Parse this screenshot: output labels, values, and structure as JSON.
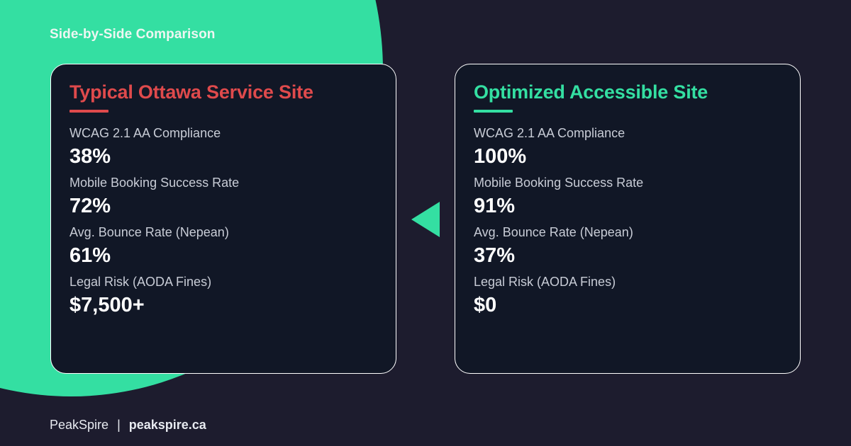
{
  "eyebrow": "Side-by-Side Comparison",
  "colors": {
    "background": "#1d1c2e",
    "accent_green": "#34dfa2",
    "accent_red": "#df4a4c",
    "card_bg": "#111726"
  },
  "left_card": {
    "title": "Typical Ottawa Service Site",
    "metrics": [
      {
        "label": "WCAG 2.1 AA Compliance",
        "value": "38%"
      },
      {
        "label": "Mobile Booking Success Rate",
        "value": "72%"
      },
      {
        "label": "Avg. Bounce Rate (Nepean)",
        "value": "61%"
      },
      {
        "label": "Legal Risk (AODA Fines)",
        "value": "$7,500+"
      }
    ]
  },
  "right_card": {
    "title": "Optimized Accessible Site",
    "metrics": [
      {
        "label": "WCAG 2.1 AA Compliance",
        "value": "100%"
      },
      {
        "label": "Mobile Booking Success Rate",
        "value": "91%"
      },
      {
        "label": "Avg. Bounce Rate (Nepean)",
        "value": "37%"
      },
      {
        "label": "Legal Risk (AODA Fines)",
        "value": "$0"
      }
    ]
  },
  "arrow_icon": "triangle-left-icon",
  "footer": {
    "brand": "PeakSpire",
    "separator": "|",
    "domain": "peakspire.ca"
  }
}
